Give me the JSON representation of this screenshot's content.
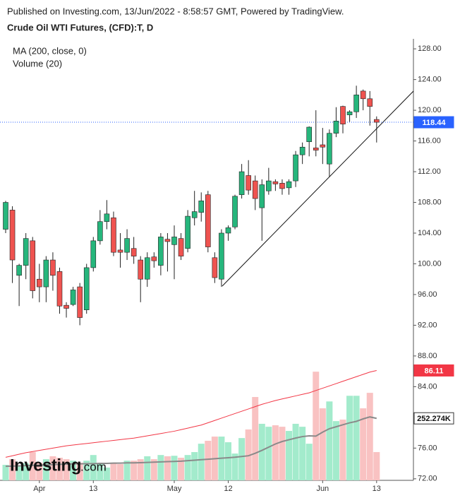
{
  "chart_data": {
    "type": "candlestick",
    "header": "Published on Investing.com, 13/Jun/2022 - 8:58:57 GMT, Powered by TradingView.",
    "title": "Crude Oil WTI Futures, (CFD):T, D",
    "ma_label": "MA (200, close, 0)",
    "volume_label": "Volume (20)",
    "logo": "Investing",
    "logo_suffix": ".com",
    "categories": [
      null,
      null,
      null,
      null,
      null,
      "Apr",
      null,
      null,
      null,
      null,
      null,
      null,
      null,
      "13",
      null,
      null,
      null,
      null,
      null,
      null,
      null,
      null,
      null,
      null,
      null,
      "May",
      null,
      null,
      null,
      null,
      null,
      null,
      null,
      "12",
      null,
      null,
      null,
      null,
      null,
      null,
      null,
      null,
      null,
      null,
      null,
      null,
      null,
      "Jun",
      null,
      null,
      null,
      null,
      null,
      null,
      null,
      "13"
    ],
    "open": [
      104.5,
      107,
      98.5,
      99.8,
      103,
      98,
      97,
      100.5,
      99,
      94.6,
      94.7,
      97,
      94,
      99.5,
      103,
      105.5,
      106,
      101.8,
      101.5,
      102,
      100.5,
      98,
      100.9,
      99.8,
      103.2,
      102.5,
      103.3,
      102,
      106,
      106.7,
      109,
      100.8,
      98,
      104,
      104.8,
      109,
      111.5,
      110.8,
      107.3,
      109.5,
      110.7,
      110.5,
      109.9,
      110.8,
      114.2,
      115.9,
      115.1,
      115.5,
      113,
      117,
      120.5,
      119.4,
      119.8,
      122.5,
      121.5,
      118.8
    ],
    "high": [
      108.2,
      107.5,
      100,
      104,
      103.5,
      100,
      101,
      101.5,
      99.5,
      95,
      97,
      97.5,
      100,
      103.5,
      107,
      108.3,
      106.8,
      104,
      104.5,
      103.5,
      101,
      101.5,
      101.5,
      104,
      104,
      105,
      104,
      107,
      109.5,
      109.3,
      109.5,
      101.5,
      104.5,
      105,
      109,
      113,
      113.5,
      111.5,
      111,
      112.5,
      111,
      111,
      111,
      114.7,
      115.8,
      117.9,
      120,
      117.7,
      117.5,
      120.4,
      120.6,
      120,
      123.2,
      122.7,
      122.5,
      119.2
    ],
    "low": [
      104,
      97.5,
      94.5,
      98,
      95.5,
      95,
      95,
      96.5,
      93.5,
      93,
      94.5,
      92,
      93.5,
      99,
      102.5,
      104.5,
      101,
      99.5,
      100.5,
      100,
      95,
      97,
      99.5,
      98.5,
      99,
      98,
      100.5,
      101.5,
      105,
      105.5,
      101.5,
      97.5,
      97,
      103,
      104.5,
      108.5,
      109,
      107,
      103,
      109,
      109.5,
      109,
      109,
      110,
      113,
      114,
      114,
      113,
      111.3,
      116.5,
      117,
      118.5,
      119,
      120,
      118,
      115.8
    ],
    "close": [
      108,
      100.5,
      99.8,
      103.3,
      96.5,
      97,
      100.5,
      98.5,
      94.5,
      94.2,
      96.6,
      93,
      99.5,
      103,
      105.5,
      106.5,
      101.5,
      101.5,
      103.3,
      101,
      98,
      100.8,
      100.4,
      103.5,
      102.9,
      103.5,
      101,
      106.2,
      106.8,
      108.2,
      102.2,
      98.2,
      104,
      104.7,
      108.8,
      112,
      109.6,
      108.5,
      110.3,
      110.8,
      110.4,
      109.8,
      110.7,
      114.2,
      115.2,
      117.8,
      114.8,
      115.2,
      117,
      118.6,
      118.2,
      119.8,
      122,
      121.5,
      120.5,
      118.44
    ],
    "up_color": "#26b67c",
    "down_color": "#ef5350",
    "last_color": "#2962ff",
    "ma200": {
      "color": "#f23645",
      "values": [
        74.8,
        75.0,
        75.2,
        75.4,
        75.55,
        75.7,
        75.85,
        76.0,
        76.15,
        76.3,
        76.4,
        76.5,
        76.6,
        76.7,
        76.8,
        76.9,
        77.0,
        77.1,
        77.2,
        77.3,
        77.45,
        77.6,
        77.75,
        77.9,
        78.05,
        78.2,
        78.4,
        78.6,
        78.8,
        79.0,
        79.3,
        79.6,
        79.9,
        80.2,
        80.5,
        80.8,
        81.1,
        81.4,
        81.7,
        81.95,
        82.2,
        82.4,
        82.6,
        82.8,
        83.0,
        83.2,
        83.5,
        83.8,
        84.1,
        84.4,
        84.7,
        85.0,
        85.3,
        85.6,
        85.9,
        86.11
      ]
    },
    "volume": {
      "up_color": "#a3ebcc",
      "down_color": "#f9c2c2",
      "lim": [
        0,
        500
      ],
      "values": [
        63,
        86,
        57,
        69,
        115,
        72,
        86,
        98,
        92,
        86,
        80,
        72,
        80,
        103,
        69,
        52,
        72,
        66,
        80,
        80,
        86,
        98,
        86,
        103,
        98,
        100,
        92,
        103,
        115,
        149,
        161,
        178,
        178,
        155,
        109,
        172,
        207,
        339,
        230,
        218,
        224,
        218,
        201,
        230,
        218,
        149,
        442,
        293,
        321,
        241,
        247,
        344,
        344,
        293,
        356,
        115
      ]
    },
    "volume_ma": {
      "color": "#8a8a8a",
      "last_label": "252.274K",
      "values": [
        57,
        58,
        59,
        60,
        61,
        62,
        63,
        64,
        65,
        66,
        67,
        67,
        68,
        68,
        69,
        69,
        70,
        70,
        71,
        71,
        72,
        73,
        74,
        75,
        76,
        77,
        78,
        80,
        82,
        84,
        86,
        88,
        90,
        92,
        94,
        97,
        100,
        110,
        122,
        135,
        148,
        158,
        165,
        172,
        178,
        181,
        180,
        196,
        210,
        218,
        226,
        234,
        240,
        250,
        258,
        252.274
      ]
    },
    "ylim": [
      71.8,
      129.3
    ],
    "yticks": [
      {
        "value": 72,
        "label": "72.00"
      },
      {
        "value": 76,
        "label": "76.00"
      },
      {
        "value": 80,
        "label": "80.00"
      },
      {
        "value": 84,
        "label": "84.00"
      },
      {
        "value": 88,
        "label": "88.00"
      },
      {
        "value": 92,
        "label": "92.00"
      },
      {
        "value": 96,
        "label": "96.00"
      },
      {
        "value": 100,
        "label": "100.00"
      },
      {
        "value": 104,
        "label": "104.00"
      },
      {
        "value": 108,
        "label": "108.00"
      },
      {
        "value": 112,
        "label": "112.00"
      },
      {
        "value": 116,
        "label": "116.00"
      },
      {
        "value": 120,
        "label": "120.00"
      },
      {
        "value": 124,
        "label": "124.00"
      },
      {
        "value": 128,
        "label": "128.00"
      }
    ],
    "grid": false
  }
}
